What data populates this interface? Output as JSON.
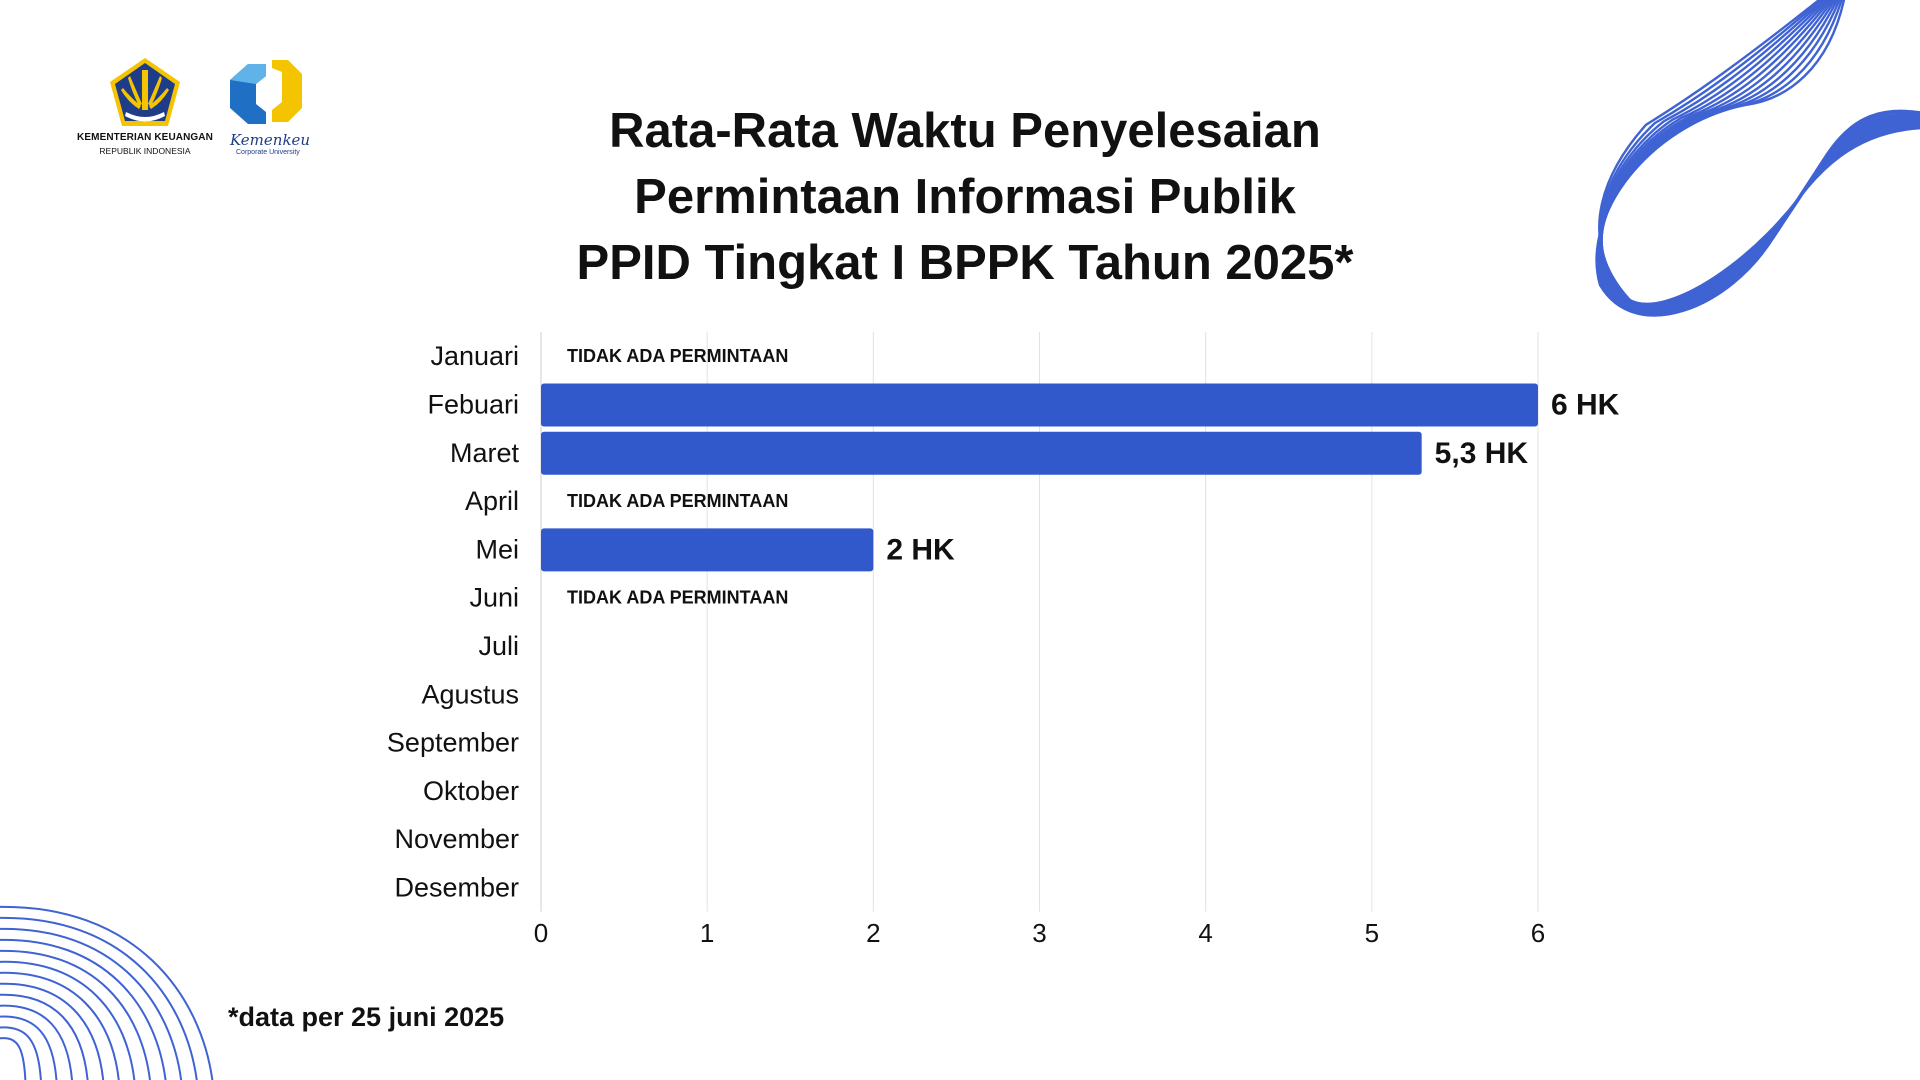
{
  "logos": {
    "kemenkeu_name": "KEMENTERIAN KEUANGAN",
    "kemenkeu_sub": "REPUBLIK INDONESIA",
    "corpu_name": "Kemenkeu",
    "corpu_sub": "Corporate University"
  },
  "title_lines": [
    "Rata-Rata Waktu Penyelesaian",
    "Permintaan Informasi Publik",
    "PPID Tingkat I BPPK Tahun 2025*"
  ],
  "footnote": "*data per 25 juni 2025",
  "colors": {
    "bar": "#3259CC",
    "decoration": "#3F63D3",
    "grid": "#E2E2E2",
    "text": "#111111",
    "logo_yellow": "#F5C400",
    "logo_blue": "#1F6FC4",
    "logo_navy": "#1F3C88"
  },
  "chart_data": {
    "type": "bar",
    "orientation": "horizontal",
    "title": "Rata-Rata Waktu Penyelesaian Permintaan Informasi Publik PPID Tingkat I BPPK Tahun 2025*",
    "categories": [
      "Januari",
      "Febuari",
      "Maret",
      "April",
      "Mei",
      "Juni",
      "Juli",
      "Agustus",
      "September",
      "Oktober",
      "November",
      "Desember"
    ],
    "values": [
      null,
      6,
      5.3,
      null,
      2,
      null,
      null,
      null,
      null,
      null,
      null,
      null
    ],
    "data_labels": [
      "TIDAK ADA PERMINTAAN",
      "6 HK",
      "5,3 HK",
      "TIDAK ADA PERMINTAAN",
      "2 HK",
      "TIDAK ADA PERMINTAAN",
      "",
      "",
      "",
      "",
      "",
      ""
    ],
    "x_ticks": [
      "0",
      "1",
      "2",
      "3",
      "4",
      "5",
      "6"
    ],
    "xlim": [
      0,
      6
    ],
    "xlabel": "",
    "ylabel": "",
    "grid": "vertical",
    "legend": "none"
  }
}
